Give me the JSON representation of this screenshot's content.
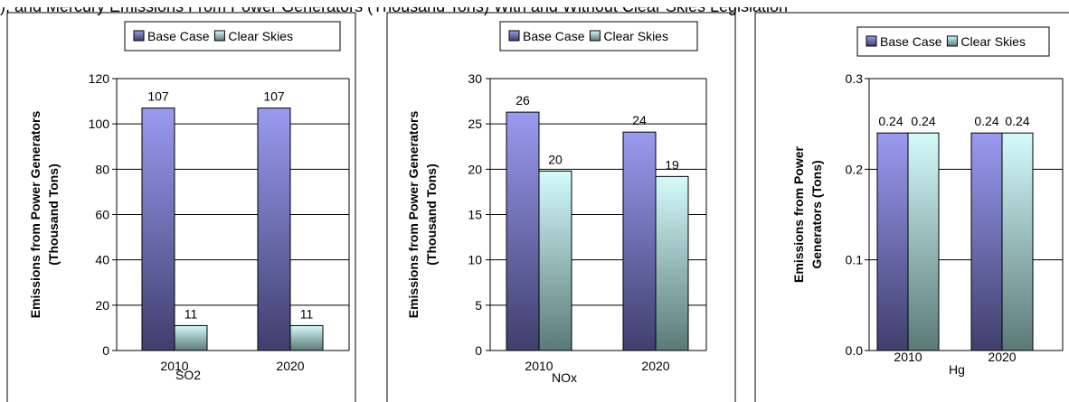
{
  "header_fragments": [
    "), and Mercury Emissions From Power Generators (Thousand Tons) With and Without Clear Skies Legislation"
  ],
  "colors": {
    "base_top": "#9a9af0",
    "base_bottom": "#3f3f6e",
    "clear_top": "#d4fbfa",
    "clear_bottom": "#5a7a78"
  },
  "chart_data": [
    {
      "type": "bar",
      "categories": [
        "2010",
        "2020"
      ],
      "series": [
        {
          "name": "Base Case",
          "values": [
            107,
            107
          ]
        },
        {
          "name": "Clear Skies",
          "values": [
            11,
            11
          ]
        }
      ],
      "data_labels": [
        [
          "107",
          "107"
        ],
        [
          "11",
          "11"
        ]
      ],
      "xlabel": "SO2",
      "ylabel": "Emissions from Power Generators (Thousand Tons)",
      "ylabel_lines": [
        "Emissions from Power Generators",
        "(Thousand Tons)"
      ],
      "ylim": [
        0,
        120
      ],
      "yticks": [
        "0",
        "20",
        "40",
        "60",
        "80",
        "100",
        "120"
      ],
      "grid": true,
      "legend": "top-right"
    },
    {
      "type": "bar",
      "categories": [
        "2010",
        "2020"
      ],
      "series": [
        {
          "name": "Base Case",
          "values": [
            26.3,
            24.1
          ]
        },
        {
          "name": "Clear Skies",
          "values": [
            19.8,
            19.2
          ]
        }
      ],
      "data_labels": [
        [
          "26",
          "24"
        ],
        [
          "20",
          "19"
        ]
      ],
      "xlabel": "NOx",
      "ylabel": "Emissions from Power Generators (Thousand Tons)",
      "ylabel_lines": [
        "Emissions from Power Generators",
        "(Thousand Tons)"
      ],
      "ylim": [
        0,
        30
      ],
      "yticks": [
        "0",
        "5",
        "10",
        "15",
        "20",
        "25",
        "30"
      ],
      "grid": true,
      "legend": "top-right"
    },
    {
      "type": "bar",
      "categories": [
        "2010",
        "2020"
      ],
      "series": [
        {
          "name": "Base Case",
          "values": [
            0.24,
            0.24
          ]
        },
        {
          "name": "Clear Skies",
          "values": [
            0.24,
            0.24
          ]
        }
      ],
      "data_labels": [
        [
          "0.24",
          "0.24"
        ],
        [
          "0.24",
          "0.24"
        ]
      ],
      "xlabel": "Hg",
      "ylabel": "Emissions from Power Generators (Tons)",
      "ylabel_lines": [
        "Emissions from Power",
        "Generators (Tons)"
      ],
      "ylim": [
        0,
        0.3
      ],
      "yticks": [
        "0.0",
        "0.1",
        "0.2",
        "0.3"
      ],
      "grid": true,
      "legend": "top"
    }
  ]
}
